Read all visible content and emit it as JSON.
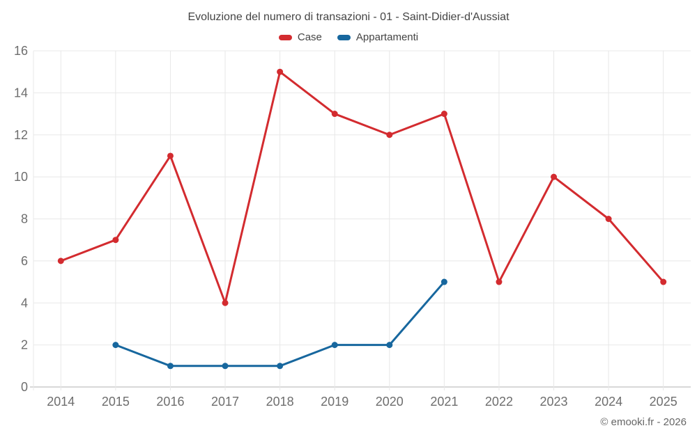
{
  "title": {
    "text": "Evoluzione del numero di transazioni - 01 - Saint-Didier-d'Aussiat"
  },
  "footer": {
    "text": "© emooki.fr - 2026"
  },
  "legend": {
    "items": [
      {
        "label": "Case",
        "color": "#d32b2f"
      },
      {
        "label": "Appartamenti",
        "color": "#17679e"
      }
    ]
  },
  "chart_data": {
    "type": "line",
    "title": "Evoluzione del numero di transazioni - 01 - Saint-Didier-d'Aussiat",
    "x": [
      "2014",
      "2015",
      "2016",
      "2017",
      "2018",
      "2019",
      "2020",
      "2021",
      "2022",
      "2023",
      "2024",
      "2025"
    ],
    "series": [
      {
        "name": "Case",
        "color": "#d32b2f",
        "values": [
          6,
          7,
          11,
          4,
          15,
          13,
          12,
          13,
          5,
          10,
          8,
          5
        ]
      },
      {
        "name": "Appartamenti",
        "color": "#17679e",
        "values": [
          null,
          2,
          1,
          1,
          1,
          2,
          2,
          5,
          null,
          null,
          null,
          null
        ]
      }
    ],
    "ylim": [
      0,
      16
    ],
    "ytick_step": 2,
    "yticks": [
      0,
      2,
      4,
      6,
      8,
      10,
      12,
      14,
      16
    ],
    "grid": true,
    "legend_position": "top",
    "styles": {
      "grid_color": "#e8e8e8",
      "axis_line_color": "#cccccc",
      "axis_label_color": "#6e6e6e",
      "axis_label_size": 18,
      "line_width": 3,
      "marker_radius": 4.5
    }
  }
}
